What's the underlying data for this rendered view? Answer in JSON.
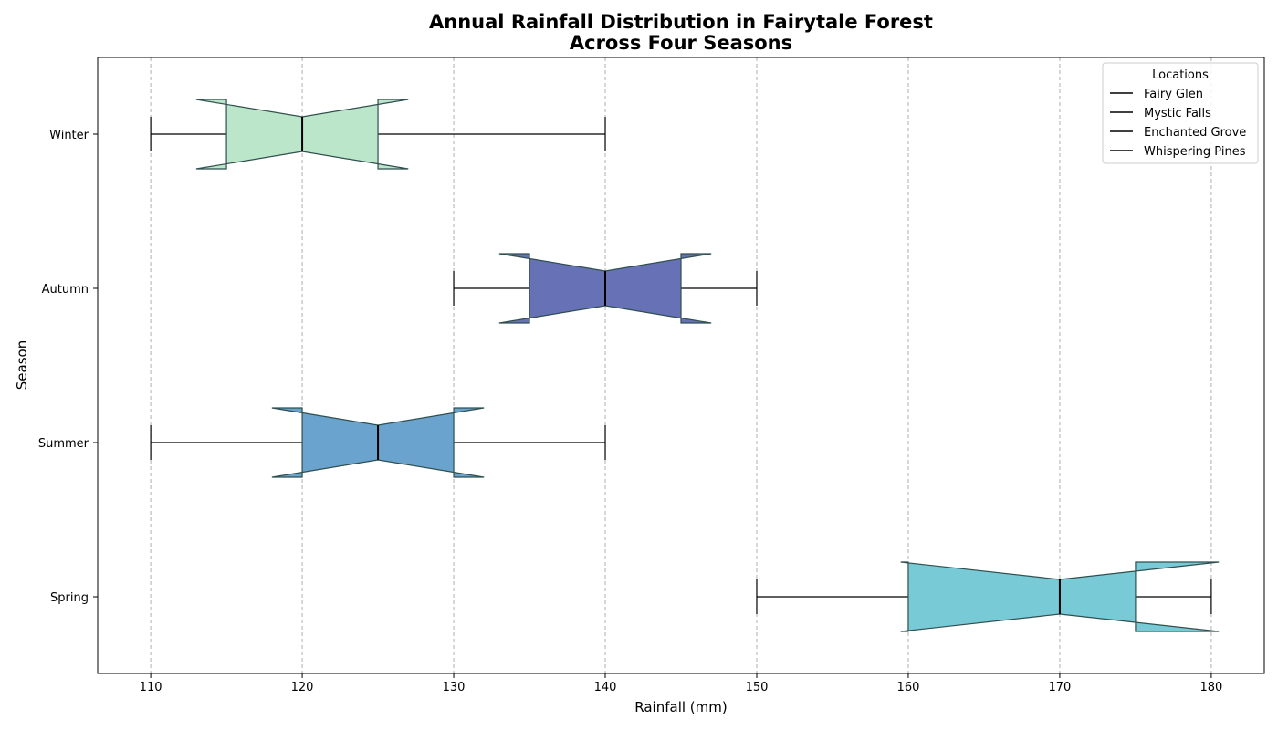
{
  "chart_data": {
    "type": "boxplot",
    "orientation": "horizontal",
    "notched": true,
    "title_lines": [
      "Annual Rainfall Distribution in Fairytale Forest",
      "Across Four Seasons"
    ],
    "xlabel": "Rainfall (mm)",
    "ylabel": "Season",
    "xlim": [
      106.5,
      183.5
    ],
    "xticks": [
      110,
      120,
      130,
      140,
      150,
      160,
      170,
      180
    ],
    "grid": {
      "x": true,
      "style": "dashed"
    },
    "categories": [
      "Spring",
      "Summer",
      "Autumn",
      "Winter"
    ],
    "boxes": [
      {
        "season": "Spring",
        "whisker_low": 150,
        "q1": 160,
        "median": 170,
        "q3": 175,
        "whisker_high": 180,
        "notch_low": 159.5,
        "notch_high": 180.5,
        "color": "#78cbd6"
      },
      {
        "season": "Summer",
        "whisker_low": 110,
        "q1": 120,
        "median": 125,
        "q3": 130,
        "whisker_high": 140,
        "notch_low": 118,
        "notch_high": 132,
        "color": "#6aa3cd"
      },
      {
        "season": "Autumn",
        "whisker_low": 130,
        "q1": 135,
        "median": 140,
        "q3": 145,
        "whisker_high": 150,
        "notch_low": 133,
        "notch_high": 147,
        "color": "#6771b6"
      },
      {
        "season": "Winter",
        "whisker_low": 110,
        "q1": 115,
        "median": 120,
        "q3": 125,
        "whisker_high": 140,
        "notch_low": 113,
        "notch_high": 127,
        "color": "#bce6c9"
      }
    ],
    "legend": {
      "title": "Locations",
      "placement": "upper right",
      "entries": [
        "Fairy Glen",
        "Mystic Falls",
        "Enchanted Grove",
        "Whispering Pines"
      ]
    }
  }
}
